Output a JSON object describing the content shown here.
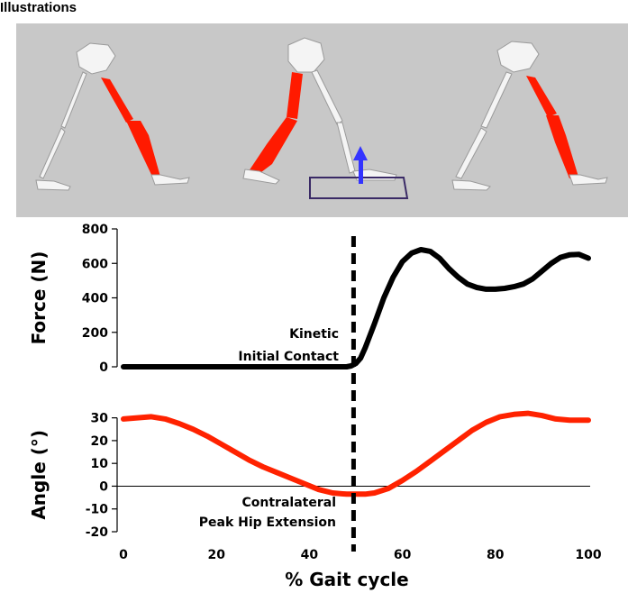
{
  "header": {
    "title": "Illustrations"
  },
  "colors": {
    "panel_bg": "#c8c8c8",
    "bone": "#f4f4f4",
    "muscle": "#ff1a00",
    "force_line": "#000000",
    "angle_line": "#ff2200",
    "force_plate": "#3a2a66",
    "force_arrow": "#3333ff"
  },
  "illustration": {
    "poses": [
      "early-stance",
      "mid-gait-initial-contact",
      "late-stance"
    ],
    "icon": "gait-skeleton-icon"
  },
  "chart_data": [
    {
      "type": "line",
      "ylabel": "Force (N)",
      "xlim": [
        0,
        100
      ],
      "ylim": [
        0,
        800
      ],
      "yticks": [
        0,
        200,
        400,
        600,
        800
      ],
      "series": [
        {
          "x": [
            0,
            10,
            20,
            30,
            40,
            48,
            49,
            50,
            51,
            52,
            54,
            56,
            58,
            60,
            62,
            64,
            66,
            68,
            70,
            72,
            74,
            76,
            78,
            80,
            82,
            84,
            86,
            88,
            90,
            92,
            94,
            96,
            98,
            100
          ],
          "values": [
            0,
            0,
            0,
            0,
            0,
            0,
            5,
            20,
            50,
            110,
            250,
            400,
            520,
            610,
            660,
            680,
            670,
            630,
            570,
            520,
            480,
            460,
            450,
            450,
            455,
            465,
            480,
            510,
            555,
            600,
            635,
            650,
            652,
            630
          ]
        }
      ],
      "annotation": {
        "lines": [
          "Kinetic",
          "Initial Contact"
        ]
      },
      "vline_x": 49.5
    },
    {
      "type": "line",
      "ylabel": "Angle (°)",
      "xlabel": "% Gait cycle",
      "xlim": [
        0,
        100
      ],
      "ylim": [
        -20,
        35
      ],
      "yticks": [
        -20,
        -10,
        0,
        10,
        20,
        30
      ],
      "xticks": [
        0,
        20,
        40,
        60,
        80,
        100
      ],
      "series": [
        {
          "x": [
            0,
            3,
            6,
            9,
            12,
            15,
            18,
            21,
            24,
            27,
            30,
            33,
            36,
            39,
            42,
            45,
            48,
            50,
            52,
            54,
            57,
            60,
            63,
            66,
            69,
            72,
            75,
            78,
            81,
            84,
            87,
            90,
            93,
            96,
            100
          ],
          "values": [
            29.5,
            30,
            30.5,
            29.5,
            27.5,
            25,
            22,
            18.5,
            15,
            11.5,
            8.5,
            6,
            3.5,
            1,
            -1.5,
            -3,
            -3.5,
            -3.5,
            -3.5,
            -3,
            -1,
            2.5,
            6.5,
            11,
            15.5,
            20,
            24.5,
            28,
            30.5,
            31.5,
            32,
            31,
            29.5,
            29,
            29
          ]
        }
      ],
      "annotation": {
        "lines": [
          "Contralateral",
          "Peak Hip Extension"
        ]
      },
      "vline_x": 49.5
    }
  ]
}
